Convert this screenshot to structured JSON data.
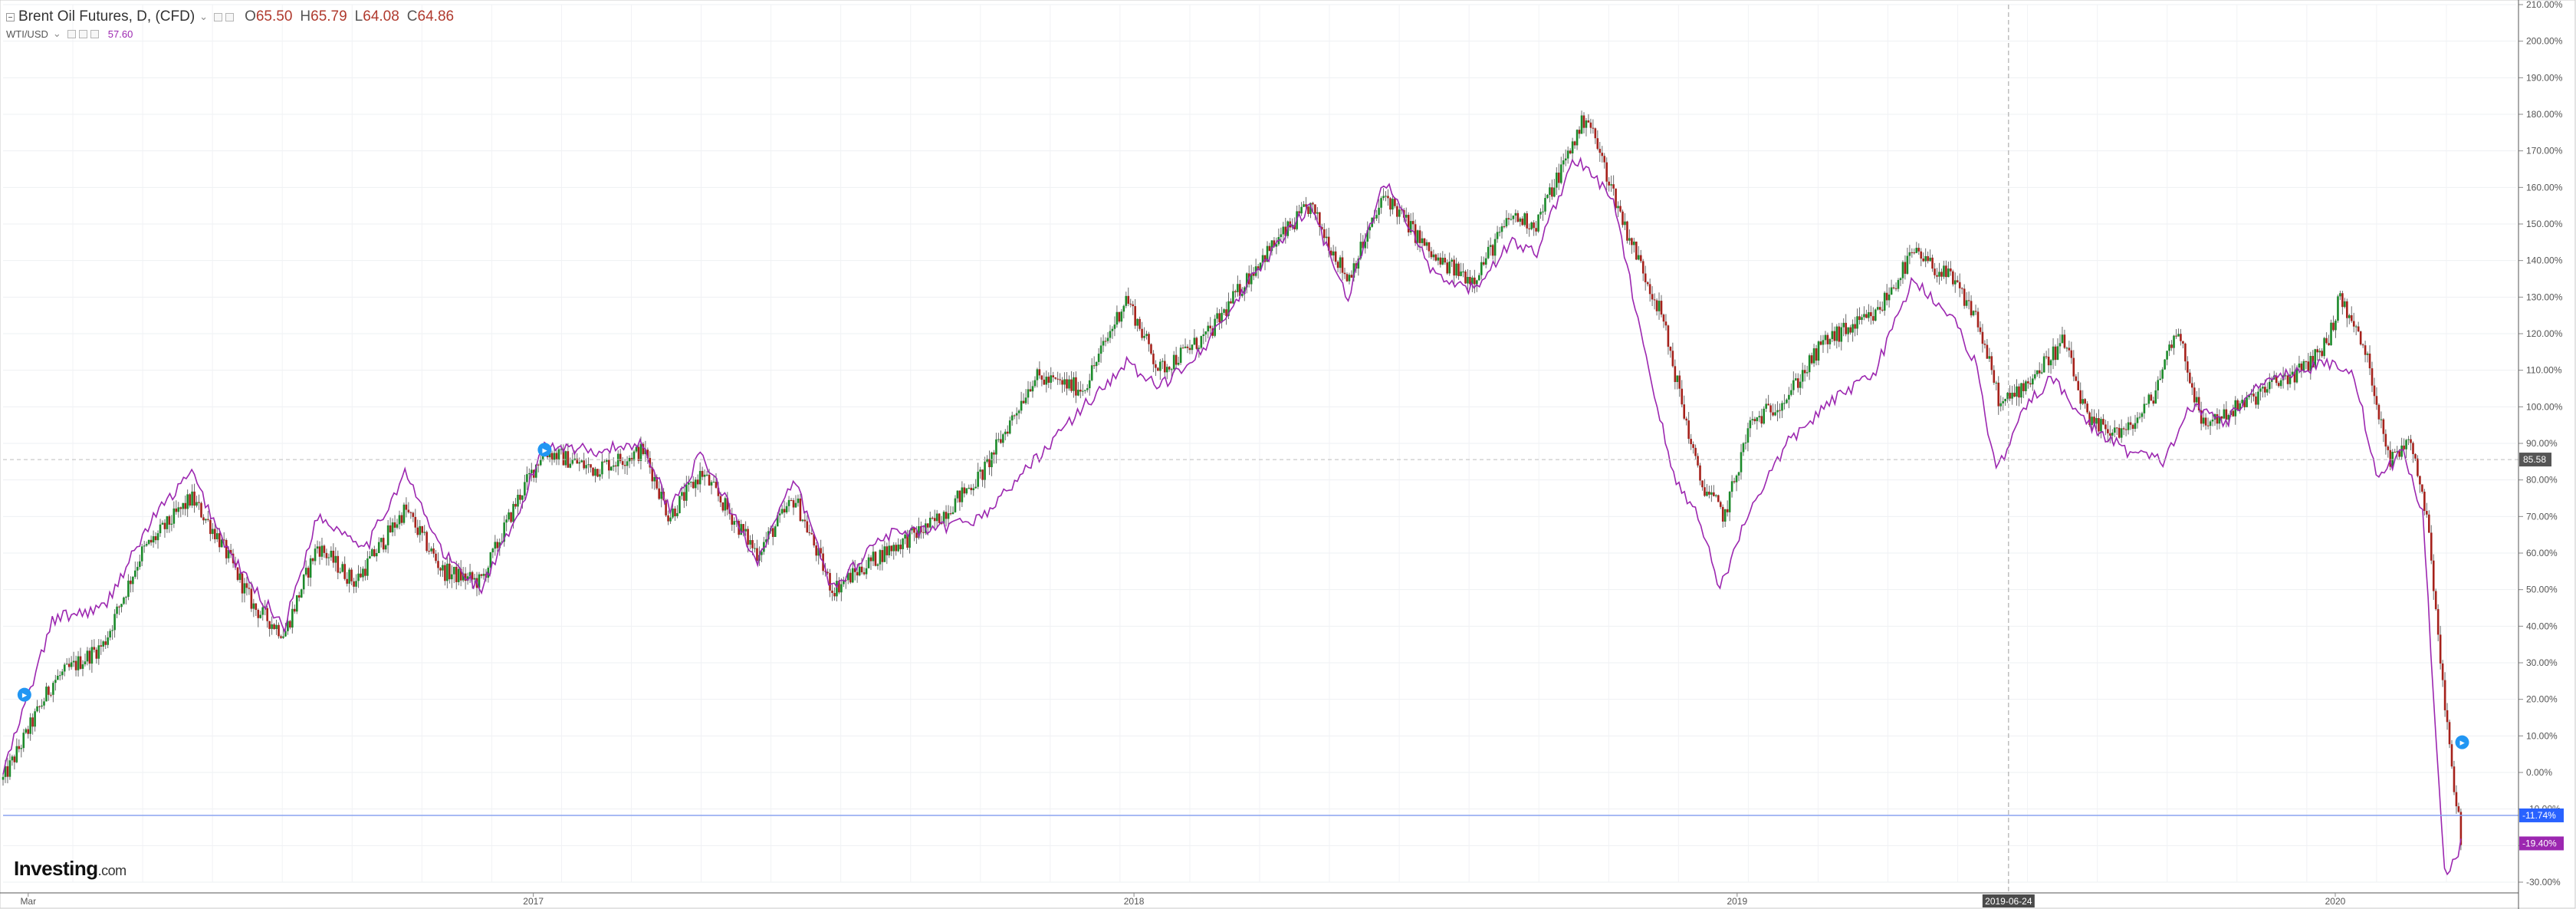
{
  "legend": {
    "main": {
      "title": "Brent Oil Futures, D, (CFD)",
      "open_label": "O",
      "open": "65.50",
      "high_label": "H",
      "high": "65.79",
      "low_label": "L",
      "low": "64.08",
      "close_label": "C",
      "close": "64.86"
    },
    "compare": {
      "name": "WTI/USD",
      "value": "57.60"
    }
  },
  "logo": {
    "brand": "Investing",
    "suffix": ".com"
  },
  "chart_data": {
    "type": "line",
    "yaxis_side": "right",
    "ylim": [
      -30,
      210
    ],
    "y_ticks": [
      "210.00%",
      "200.00%",
      "190.00%",
      "180.00%",
      "170.00%",
      "160.00%",
      "150.00%",
      "140.00%",
      "130.00%",
      "120.00%",
      "110.00%",
      "100.00%",
      "90.00%",
      "80.00%",
      "70.00%",
      "60.00%",
      "50.00%",
      "40.00%",
      "30.00%",
      "20.00%",
      "10.00%",
      "0.00%",
      "-10.00%",
      "-20.00%",
      "-30.00%"
    ],
    "x_ticks": [
      {
        "label": "Mar",
        "t": 0.01
      },
      {
        "label": "2017",
        "t": 0.211
      },
      {
        "label": "2018",
        "t": 0.45
      },
      {
        "label": "2019",
        "t": 0.69
      },
      {
        "label": "2019-06-24",
        "t": 0.798,
        "highlight": true
      },
      {
        "label": "2020",
        "t": 0.928
      }
    ],
    "price_marker": {
      "value": 85.58,
      "label": "85.58"
    },
    "blue_line": {
      "value": -11.74,
      "label": "-11.74%",
      "color": "#2962ff"
    },
    "series": [
      {
        "name": "Brent Oil Futures",
        "style": "candlestick",
        "up_color": "#1b8a2a",
        "down_color": "#a5211b",
        "points": [
          [
            0.0,
            -2
          ],
          [
            0.02,
            25
          ],
          [
            0.04,
            35
          ],
          [
            0.055,
            60
          ],
          [
            0.075,
            75
          ],
          [
            0.085,
            65
          ],
          [
            0.1,
            45
          ],
          [
            0.112,
            38
          ],
          [
            0.125,
            62
          ],
          [
            0.14,
            52
          ],
          [
            0.16,
            72
          ],
          [
            0.175,
            55
          ],
          [
            0.19,
            52
          ],
          [
            0.205,
            75
          ],
          [
            0.215,
            88
          ],
          [
            0.235,
            83
          ],
          [
            0.255,
            88
          ],
          [
            0.265,
            70
          ],
          [
            0.278,
            82
          ],
          [
            0.3,
            60
          ],
          [
            0.315,
            75
          ],
          [
            0.33,
            50
          ],
          [
            0.35,
            60
          ],
          [
            0.37,
            68
          ],
          [
            0.39,
            82
          ],
          [
            0.41,
            108
          ],
          [
            0.43,
            105
          ],
          [
            0.447,
            130
          ],
          [
            0.46,
            110
          ],
          [
            0.48,
            120
          ],
          [
            0.5,
            140
          ],
          [
            0.52,
            155
          ],
          [
            0.535,
            135
          ],
          [
            0.55,
            158
          ],
          [
            0.57,
            140
          ],
          [
            0.585,
            135
          ],
          [
            0.6,
            152
          ],
          [
            0.61,
            150
          ],
          [
            0.63,
            180
          ],
          [
            0.645,
            150
          ],
          [
            0.66,
            125
          ],
          [
            0.675,
            80
          ],
          [
            0.685,
            70
          ],
          [
            0.695,
            95
          ],
          [
            0.71,
            103
          ],
          [
            0.725,
            118
          ],
          [
            0.745,
            125
          ],
          [
            0.76,
            142
          ],
          [
            0.775,
            135
          ],
          [
            0.785,
            125
          ],
          [
            0.795,
            100
          ],
          [
            0.81,
            110
          ],
          [
            0.82,
            118
          ],
          [
            0.83,
            95
          ],
          [
            0.845,
            93
          ],
          [
            0.855,
            102
          ],
          [
            0.865,
            122
          ],
          [
            0.875,
            95
          ],
          [
            0.89,
            100
          ],
          [
            0.905,
            107
          ],
          [
            0.915,
            110
          ],
          [
            0.925,
            118
          ],
          [
            0.93,
            130
          ],
          [
            0.94,
            115
          ],
          [
            0.95,
            85
          ],
          [
            0.958,
            92
          ],
          [
            0.965,
            68
          ],
          [
            0.972,
            15
          ],
          [
            0.978,
            -18
          ]
        ]
      },
      {
        "name": "WTI/USD",
        "style": "line",
        "color": "#9c27b0",
        "points": [
          [
            0.0,
            0
          ],
          [
            0.02,
            42
          ],
          [
            0.04,
            45
          ],
          [
            0.06,
            70
          ],
          [
            0.075,
            82
          ],
          [
            0.09,
            60
          ],
          [
            0.1,
            50
          ],
          [
            0.112,
            40
          ],
          [
            0.125,
            70
          ],
          [
            0.145,
            62
          ],
          [
            0.16,
            82
          ],
          [
            0.175,
            60
          ],
          [
            0.19,
            50
          ],
          [
            0.205,
            70
          ],
          [
            0.215,
            90
          ],
          [
            0.235,
            88
          ],
          [
            0.255,
            90
          ],
          [
            0.265,
            72
          ],
          [
            0.278,
            87
          ],
          [
            0.3,
            58
          ],
          [
            0.315,
            80
          ],
          [
            0.33,
            50
          ],
          [
            0.35,
            65
          ],
          [
            0.37,
            66
          ],
          [
            0.39,
            70
          ],
          [
            0.41,
            85
          ],
          [
            0.43,
            100
          ],
          [
            0.447,
            112
          ],
          [
            0.46,
            105
          ],
          [
            0.48,
            118
          ],
          [
            0.5,
            138
          ],
          [
            0.52,
            155
          ],
          [
            0.535,
            130
          ],
          [
            0.55,
            162
          ],
          [
            0.57,
            135
          ],
          [
            0.585,
            132
          ],
          [
            0.6,
            145
          ],
          [
            0.61,
            142
          ],
          [
            0.625,
            168
          ],
          [
            0.64,
            158
          ],
          [
            0.655,
            110
          ],
          [
            0.665,
            80
          ],
          [
            0.675,
            70
          ],
          [
            0.683,
            50
          ],
          [
            0.695,
            72
          ],
          [
            0.71,
            90
          ],
          [
            0.725,
            100
          ],
          [
            0.745,
            110
          ],
          [
            0.76,
            135
          ],
          [
            0.775,
            125
          ],
          [
            0.785,
            112
          ],
          [
            0.793,
            82
          ],
          [
            0.805,
            100
          ],
          [
            0.815,
            108
          ],
          [
            0.83,
            95
          ],
          [
            0.845,
            88
          ],
          [
            0.86,
            85
          ],
          [
            0.87,
            100
          ],
          [
            0.885,
            96
          ],
          [
            0.9,
            108
          ],
          [
            0.915,
            110
          ],
          [
            0.925,
            112
          ],
          [
            0.935,
            110
          ],
          [
            0.945,
            80
          ],
          [
            0.955,
            88
          ],
          [
            0.963,
            70
          ],
          [
            0.968,
            10
          ],
          [
            0.972,
            -30
          ],
          [
            0.978,
            -19.4
          ]
        ],
        "last_label": "-19.40%"
      }
    ],
    "flags": [
      {
        "t": 0.003,
        "v": 20
      },
      {
        "t": 0.21,
        "v": 87
      },
      {
        "t": 0.973,
        "v": 7
      }
    ]
  }
}
